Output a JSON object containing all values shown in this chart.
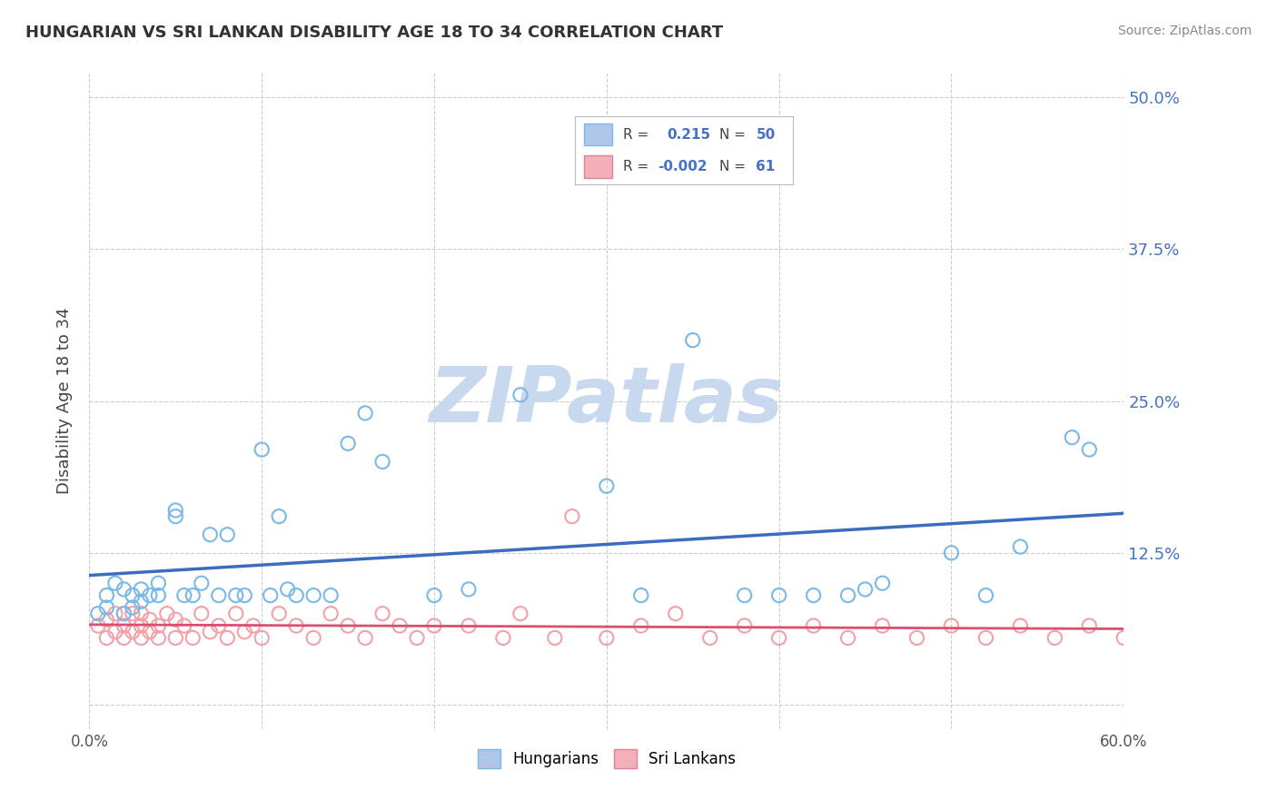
{
  "title": "HUNGARIAN VS SRI LANKAN DISABILITY AGE 18 TO 34 CORRELATION CHART",
  "source_text": "Source: ZipAtlas.com",
  "ylabel": "Disability Age 18 to 34",
  "xlim": [
    0.0,
    0.6
  ],
  "ylim": [
    -0.02,
    0.52
  ],
  "xticks": [
    0.0,
    0.1,
    0.2,
    0.3,
    0.4,
    0.5,
    0.6
  ],
  "xticklabels": [
    "0.0%",
    "",
    "",
    "",
    "",
    "",
    "60.0%"
  ],
  "yticks": [
    0.0,
    0.125,
    0.25,
    0.375,
    0.5
  ],
  "yticklabels": [
    "",
    "12.5%",
    "25.0%",
    "37.5%",
    "50.0%"
  ],
  "grid_color": "#cccccc",
  "background_color": "#ffffff",
  "hu_scatter_x": [
    0.005,
    0.01,
    0.01,
    0.015,
    0.02,
    0.02,
    0.025,
    0.025,
    0.03,
    0.03,
    0.035,
    0.04,
    0.04,
    0.05,
    0.05,
    0.055,
    0.06,
    0.065,
    0.07,
    0.075,
    0.08,
    0.085,
    0.09,
    0.1,
    0.105,
    0.11,
    0.115,
    0.12,
    0.13,
    0.14,
    0.15,
    0.16,
    0.17,
    0.2,
    0.22,
    0.25,
    0.3,
    0.32,
    0.35,
    0.38,
    0.4,
    0.42,
    0.44,
    0.45,
    0.46,
    0.5,
    0.52,
    0.54,
    0.57,
    0.58
  ],
  "hu_scatter_y": [
    0.075,
    0.08,
    0.09,
    0.1,
    0.075,
    0.095,
    0.08,
    0.09,
    0.085,
    0.095,
    0.09,
    0.09,
    0.1,
    0.155,
    0.16,
    0.09,
    0.09,
    0.1,
    0.14,
    0.09,
    0.14,
    0.09,
    0.09,
    0.21,
    0.09,
    0.155,
    0.095,
    0.09,
    0.09,
    0.09,
    0.215,
    0.24,
    0.2,
    0.09,
    0.095,
    0.255,
    0.18,
    0.09,
    0.3,
    0.09,
    0.09,
    0.09,
    0.09,
    0.095,
    0.1,
    0.125,
    0.09,
    0.13,
    0.22,
    0.21
  ],
  "sl_scatter_x": [
    0.005,
    0.01,
    0.01,
    0.015,
    0.015,
    0.02,
    0.02,
    0.02,
    0.025,
    0.025,
    0.03,
    0.03,
    0.03,
    0.035,
    0.035,
    0.04,
    0.04,
    0.045,
    0.05,
    0.05,
    0.055,
    0.06,
    0.065,
    0.07,
    0.075,
    0.08,
    0.085,
    0.09,
    0.095,
    0.1,
    0.11,
    0.12,
    0.13,
    0.14,
    0.15,
    0.16,
    0.17,
    0.18,
    0.19,
    0.2,
    0.22,
    0.24,
    0.25,
    0.27,
    0.28,
    0.3,
    0.32,
    0.34,
    0.36,
    0.38,
    0.4,
    0.42,
    0.44,
    0.46,
    0.48,
    0.5,
    0.52,
    0.54,
    0.56,
    0.58,
    0.6
  ],
  "sl_scatter_y": [
    0.065,
    0.055,
    0.07,
    0.06,
    0.075,
    0.055,
    0.065,
    0.075,
    0.06,
    0.075,
    0.055,
    0.065,
    0.075,
    0.06,
    0.07,
    0.055,
    0.065,
    0.075,
    0.055,
    0.07,
    0.065,
    0.055,
    0.075,
    0.06,
    0.065,
    0.055,
    0.075,
    0.06,
    0.065,
    0.055,
    0.075,
    0.065,
    0.055,
    0.075,
    0.065,
    0.055,
    0.075,
    0.065,
    0.055,
    0.065,
    0.065,
    0.055,
    0.075,
    0.055,
    0.155,
    0.055,
    0.065,
    0.075,
    0.055,
    0.065,
    0.055,
    0.065,
    0.055,
    0.065,
    0.055,
    0.065,
    0.055,
    0.065,
    0.055,
    0.065,
    0.055
  ],
  "hu_line_x": [
    0.0,
    0.6
  ],
  "hu_line_y": [
    0.098,
    0.212
  ],
  "sl_line_x": [
    0.0,
    0.6
  ],
  "sl_line_y": [
    0.076,
    0.075
  ],
  "hu_color": "#7ab8e8",
  "sl_color": "#f4a0a8",
  "hu_line_color": "#3a6cbf",
  "sl_line_color": "#d94f6e",
  "legend_hu_fill": "#aec6e8",
  "legend_hu_edge": "#7ab8e8",
  "legend_sl_fill": "#f4b0b8",
  "legend_sl_edge": "#e08090",
  "legend_text_color": "#4472c4",
  "tick_label_color": "#4472c4",
  "watermark_text": "ZIPatlas",
  "watermark_color": "#c8d8ef",
  "watermark_fontsize": 62
}
